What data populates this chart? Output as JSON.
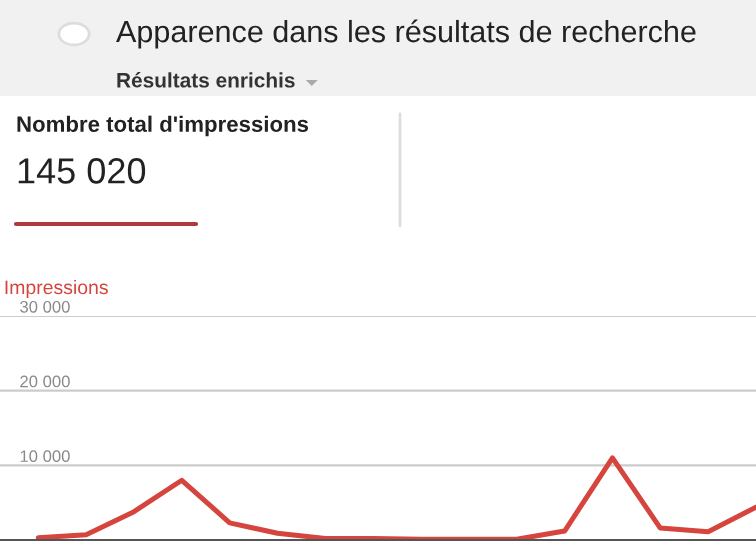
{
  "chart_data": {
    "type": "line",
    "title": "Apparence dans les résultats de recherche",
    "subtitle": "Résultats enrichis",
    "annotations": [
      "Nombre total d'impressions",
      "145 020"
    ],
    "categories": [
      null,
      null,
      null,
      null,
      null,
      null,
      null,
      null,
      null,
      null,
      null,
      null,
      null,
      null,
      null,
      null
    ],
    "series": [
      {
        "name": "Impressions",
        "color": "#d6453d",
        "values": [
          300,
          700,
          3800,
          8000,
          2300,
          900,
          200,
          200,
          100,
          100,
          100,
          1200,
          11000,
          1600,
          1100,
          4400
        ]
      }
    ],
    "ylim": [
      0,
      30000
    ],
    "yticks": [
      {
        "value": 0,
        "label": null
      },
      {
        "value": 10000,
        "label": "10 000"
      },
      {
        "value": 20000,
        "label": "20 000"
      },
      {
        "value": 30000,
        "label": "30 000"
      }
    ],
    "grid": "y",
    "legend": "top left",
    "marker": "none",
    "line_style": "solid",
    "tick_labels": "y"
  }
}
